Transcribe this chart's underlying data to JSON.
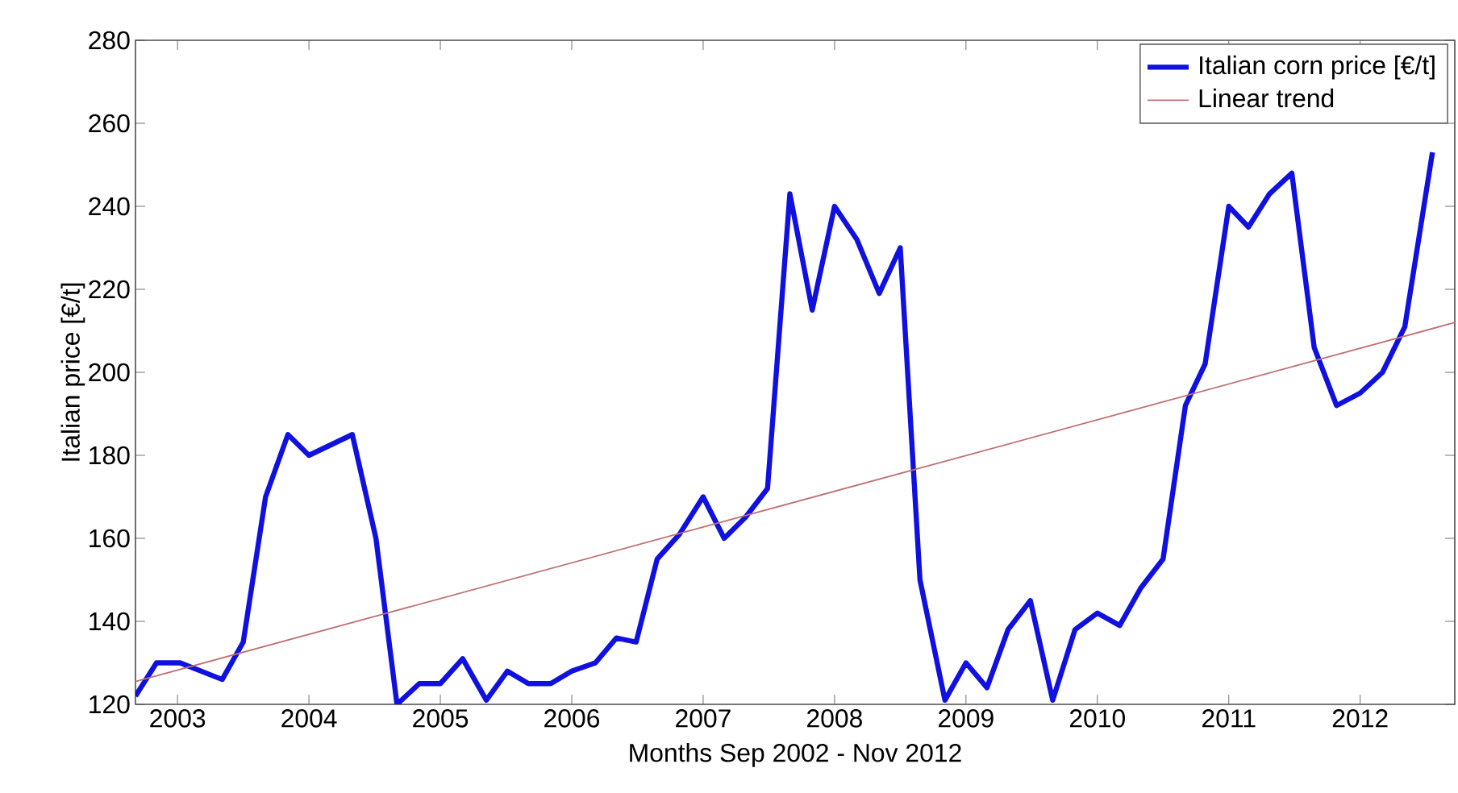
{
  "chart_data": {
    "type": "line",
    "xlabel": "Months Sep 2002 - Nov 2012",
    "ylabel": "Italian price [€/t]",
    "xlim": [
      2002.68,
      2012.72
    ],
    "xticks": [
      2003,
      2004,
      2005,
      2006,
      2007,
      2008,
      2009,
      2010,
      2011,
      2012
    ],
    "ylim": [
      120,
      280
    ],
    "yticks": [
      120,
      140,
      160,
      180,
      200,
      220,
      240,
      260,
      280
    ],
    "legend": "top right",
    "grid": false,
    "series": [
      {
        "name": "Italian corn price [€/t]",
        "color": "#1010e0",
        "x": [
          2002.68,
          2002.84,
          2003.02,
          2003.34,
          2003.5,
          2003.67,
          2003.84,
          2004.0,
          2004.33,
          2004.51,
          2004.67,
          2004.84,
          2005.0,
          2005.17,
          2005.35,
          2005.51,
          2005.67,
          2005.84,
          2006.0,
          2006.18,
          2006.34,
          2006.49,
          2006.65,
          2006.82,
          2007.0,
          2007.16,
          2007.32,
          2007.49,
          2007.66,
          2007.83,
          2008.0,
          2008.17,
          2008.34,
          2008.5,
          2008.65,
          2008.84,
          2009.0,
          2009.16,
          2009.32,
          2009.49,
          2009.66,
          2009.83,
          2010.0,
          2010.17,
          2010.33,
          2010.5,
          2010.67,
          2010.82,
          2011.0,
          2011.15,
          2011.31,
          2011.48,
          2011.65,
          2011.82,
          2012.0,
          2012.17,
          2012.34,
          2012.55
        ],
        "values": [
          122,
          130,
          130,
          126,
          135,
          170,
          185,
          180,
          185,
          160,
          120,
          125,
          125,
          131,
          121,
          128,
          125,
          125,
          128,
          130,
          136,
          135,
          155,
          161,
          170,
          160,
          165,
          172,
          243,
          215,
          240,
          232,
          219,
          230,
          150,
          121,
          130,
          124,
          138,
          145,
          121,
          138,
          142,
          139,
          148,
          155,
          192,
          202,
          240,
          235,
          243,
          248,
          206,
          192,
          195,
          200,
          211,
          253
        ]
      },
      {
        "name": "Linear trend",
        "color": "#c07070",
        "x": [
          2002.68,
          2012.72
        ],
        "values": [
          125.5,
          212
        ]
      }
    ]
  }
}
